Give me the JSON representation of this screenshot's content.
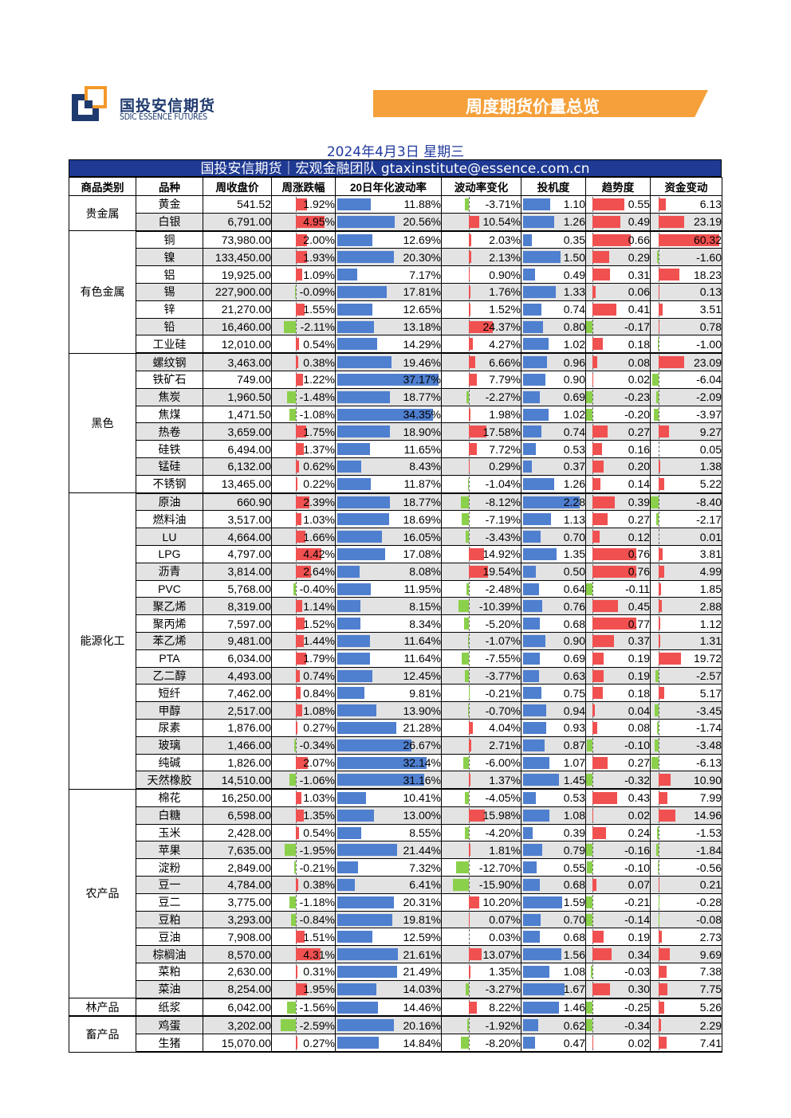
{
  "logo": {
    "name_cn": "国投安信期货",
    "name_en": "SDIC ESSENCE FUTURES"
  },
  "banner": {
    "title": "周度期货价量总览"
  },
  "date": "2024年4月3日 星期三",
  "team": "国投安信期货｜宏观金融团队 gtaxinstitute@essence.com.cn",
  "headers": [
    "商品类别",
    "品种",
    "周收盘价",
    "周涨跌幅",
    "20日年化波动率",
    "波动率变化",
    "投机度",
    "趋势度",
    "资金变动"
  ],
  "colors": {
    "pos": "#f05050",
    "neg": "#8bd04a",
    "vol": "#4f7fcf"
  },
  "groups": [
    {
      "name": "贵金属",
      "rows": [
        {
          "name": "黄金",
          "close": "541.52",
          "chg": "1.92%",
          "vol": "11.88%",
          "volchg": "-3.71%",
          "spec": "1.10",
          "trend": "0.55",
          "fund": "6.13"
        },
        {
          "name": "白银",
          "close": "6,791.00",
          "chg": "4.95%",
          "vol": "20.56%",
          "volchg": "10.54%",
          "spec": "1.26",
          "trend": "0.49",
          "fund": "23.19"
        }
      ]
    },
    {
      "name": "有色金属",
      "rows": [
        {
          "name": "铜",
          "close": "73,980.00",
          "chg": "2.00%",
          "vol": "12.69%",
          "volchg": "2.03%",
          "spec": "0.35",
          "trend": "0.66",
          "fund": "60.32"
        },
        {
          "name": "镍",
          "close": "133,450.00",
          "chg": "1.93%",
          "vol": "20.30%",
          "volchg": "2.13%",
          "spec": "1.50",
          "trend": "0.29",
          "fund": "-1.60"
        },
        {
          "name": "铝",
          "close": "19,925.00",
          "chg": "1.09%",
          "vol": "7.17%",
          "volchg": "0.90%",
          "spec": "0.49",
          "trend": "0.31",
          "fund": "18.23"
        },
        {
          "name": "锡",
          "close": "227,900.00",
          "chg": "-0.09%",
          "vol": "17.81%",
          "volchg": "1.76%",
          "spec": "1.33",
          "trend": "0.06",
          "fund": "0.13"
        },
        {
          "name": "锌",
          "close": "21,270.00",
          "chg": "1.55%",
          "vol": "12.65%",
          "volchg": "1.52%",
          "spec": "0.74",
          "trend": "0.41",
          "fund": "3.51"
        },
        {
          "name": "铅",
          "close": "16,460.00",
          "chg": "-2.11%",
          "vol": "13.18%",
          "volchg": "24.37%",
          "spec": "0.80",
          "trend": "-0.17",
          "fund": "0.78"
        },
        {
          "name": "工业硅",
          "close": "12,010.00",
          "chg": "0.54%",
          "vol": "14.29%",
          "volchg": "4.27%",
          "spec": "1.02",
          "trend": "0.18",
          "fund": "-1.00"
        }
      ]
    },
    {
      "name": "黑色",
      "rows": [
        {
          "name": "螺纹钢",
          "close": "3,463.00",
          "chg": "0.38%",
          "vol": "19.46%",
          "volchg": "6.66%",
          "spec": "0.96",
          "trend": "0.08",
          "fund": "23.09"
        },
        {
          "name": "铁矿石",
          "close": "749.00",
          "chg": "1.22%",
          "vol": "37.17%",
          "volchg": "7.79%",
          "spec": "0.90",
          "trend": "0.02",
          "fund": "-6.04"
        },
        {
          "name": "焦炭",
          "close": "1,960.50",
          "chg": "-1.48%",
          "vol": "18.77%",
          "volchg": "-2.27%",
          "spec": "0.69",
          "trend": "-0.23",
          "fund": "-2.09"
        },
        {
          "name": "焦煤",
          "close": "1,471.50",
          "chg": "-1.08%",
          "vol": "34.35%",
          "volchg": "1.98%",
          "spec": "1.02",
          "trend": "-0.20",
          "fund": "-3.97"
        },
        {
          "name": "热卷",
          "close": "3,659.00",
          "chg": "1.75%",
          "vol": "18.90%",
          "volchg": "17.58%",
          "spec": "0.74",
          "trend": "0.27",
          "fund": "9.27"
        },
        {
          "name": "硅铁",
          "close": "6,494.00",
          "chg": "1.37%",
          "vol": "11.65%",
          "volchg": "7.72%",
          "spec": "0.53",
          "trend": "0.16",
          "fund": "0.05"
        },
        {
          "name": "锰硅",
          "close": "6,132.00",
          "chg": "0.62%",
          "vol": "8.43%",
          "volchg": "0.29%",
          "spec": "0.37",
          "trend": "0.20",
          "fund": "1.38"
        },
        {
          "name": "不锈钢",
          "close": "13,465.00",
          "chg": "0.22%",
          "vol": "11.87%",
          "volchg": "-1.04%",
          "spec": "1.26",
          "trend": "0.14",
          "fund": "5.22"
        }
      ]
    },
    {
      "name": "能源化工",
      "rows": [
        {
          "name": "原油",
          "close": "660.90",
          "chg": "2.39%",
          "vol": "18.77%",
          "volchg": "-8.12%",
          "spec": "2.28",
          "trend": "0.39",
          "fund": "-8.40"
        },
        {
          "name": "燃料油",
          "close": "3,517.00",
          "chg": "1.03%",
          "vol": "18.69%",
          "volchg": "-7.19%",
          "spec": "1.13",
          "trend": "0.27",
          "fund": "-2.17"
        },
        {
          "name": "LU",
          "close": "4,664.00",
          "chg": "1.66%",
          "vol": "16.05%",
          "volchg": "-3.43%",
          "spec": "0.70",
          "trend": "0.12",
          "fund": "0.01"
        },
        {
          "name": "LPG",
          "close": "4,797.00",
          "chg": "4.42%",
          "vol": "17.08%",
          "volchg": "14.92%",
          "spec": "1.35",
          "trend": "0.76",
          "fund": "3.81"
        },
        {
          "name": "沥青",
          "close": "3,814.00",
          "chg": "2.64%",
          "vol": "8.08%",
          "volchg": "19.54%",
          "spec": "0.50",
          "trend": "0.76",
          "fund": "4.99"
        },
        {
          "name": "PVC",
          "close": "5,768.00",
          "chg": "-0.40%",
          "vol": "11.95%",
          "volchg": "-2.48%",
          "spec": "0.64",
          "trend": "-0.11",
          "fund": "1.85"
        },
        {
          "name": "聚乙烯",
          "close": "8,319.00",
          "chg": "1.14%",
          "vol": "8.15%",
          "volchg": "-10.39%",
          "spec": "0.76",
          "trend": "0.45",
          "fund": "2.88"
        },
        {
          "name": "聚丙烯",
          "close": "7,597.00",
          "chg": "1.52%",
          "vol": "8.34%",
          "volchg": "-5.20%",
          "spec": "0.68",
          "trend": "0.77",
          "fund": "1.12"
        },
        {
          "name": "苯乙烯",
          "close": "9,481.00",
          "chg": "1.44%",
          "vol": "11.64%",
          "volchg": "-1.07%",
          "spec": "0.90",
          "trend": "0.37",
          "fund": "1.31"
        },
        {
          "name": "PTA",
          "close": "6,034.00",
          "chg": "1.79%",
          "vol": "11.64%",
          "volchg": "-7.55%",
          "spec": "0.69",
          "trend": "0.19",
          "fund": "19.72"
        },
        {
          "name": "乙二醇",
          "close": "4,493.00",
          "chg": "0.74%",
          "vol": "12.45%",
          "volchg": "-3.77%",
          "spec": "0.63",
          "trend": "0.19",
          "fund": "-2.57"
        },
        {
          "name": "短纤",
          "close": "7,462.00",
          "chg": "0.84%",
          "vol": "9.81%",
          "volchg": "-0.21%",
          "spec": "0.75",
          "trend": "0.18",
          "fund": "5.17"
        },
        {
          "name": "甲醇",
          "close": "2,517.00",
          "chg": "1.08%",
          "vol": "13.90%",
          "volchg": "-0.70%",
          "spec": "0.94",
          "trend": "0.04",
          "fund": "-3.45"
        },
        {
          "name": "尿素",
          "close": "1,876.00",
          "chg": "0.27%",
          "vol": "21.28%",
          "volchg": "4.04%",
          "spec": "0.93",
          "trend": "0.08",
          "fund": "-1.74"
        },
        {
          "name": "玻璃",
          "close": "1,466.00",
          "chg": "-0.34%",
          "vol": "26.67%",
          "volchg": "2.71%",
          "spec": "0.87",
          "trend": "-0.10",
          "fund": "-3.48"
        },
        {
          "name": "纯碱",
          "close": "1,826.00",
          "chg": "2.07%",
          "vol": "32.14%",
          "volchg": "-6.00%",
          "spec": "1.07",
          "trend": "0.27",
          "fund": "-6.13"
        },
        {
          "name": "天然橡胶",
          "close": "14,510.00",
          "chg": "-1.06%",
          "vol": "31.16%",
          "volchg": "1.37%",
          "spec": "1.45",
          "trend": "-0.32",
          "fund": "10.90"
        }
      ]
    },
    {
      "name": "农产品",
      "rows": [
        {
          "name": "棉花",
          "close": "16,250.00",
          "chg": "1.03%",
          "vol": "10.41%",
          "volchg": "-4.05%",
          "spec": "0.53",
          "trend": "0.43",
          "fund": "7.99"
        },
        {
          "name": "白糖",
          "close": "6,598.00",
          "chg": "1.35%",
          "vol": "13.00%",
          "volchg": "15.98%",
          "spec": "1.08",
          "trend": "0.02",
          "fund": "14.96"
        },
        {
          "name": "玉米",
          "close": "2,428.00",
          "chg": "0.54%",
          "vol": "8.55%",
          "volchg": "-4.20%",
          "spec": "0.39",
          "trend": "0.24",
          "fund": "-1.53"
        },
        {
          "name": "苹果",
          "close": "7,635.00",
          "chg": "-1.95%",
          "vol": "21.44%",
          "volchg": "1.81%",
          "spec": "0.79",
          "trend": "-0.16",
          "fund": "-1.84"
        },
        {
          "name": "淀粉",
          "close": "2,849.00",
          "chg": "-0.21%",
          "vol": "7.32%",
          "volchg": "-12.70%",
          "spec": "0.55",
          "trend": "-0.10",
          "fund": "-0.56"
        },
        {
          "name": "豆一",
          "close": "4,784.00",
          "chg": "0.38%",
          "vol": "6.41%",
          "volchg": "-15.90%",
          "spec": "0.68",
          "trend": "0.07",
          "fund": "0.21"
        },
        {
          "name": "豆二",
          "close": "3,775.00",
          "chg": "-1.18%",
          "vol": "20.31%",
          "volchg": "10.20%",
          "spec": "1.59",
          "trend": "-0.21",
          "fund": "-0.28"
        },
        {
          "name": "豆粕",
          "close": "3,293.00",
          "chg": "-0.84%",
          "vol": "19.81%",
          "volchg": "0.07%",
          "spec": "0.70",
          "trend": "-0.14",
          "fund": "-0.08"
        },
        {
          "name": "豆油",
          "close": "7,908.00",
          "chg": "1.51%",
          "vol": "12.59%",
          "volchg": "0.03%",
          "spec": "0.68",
          "trend": "0.19",
          "fund": "2.73"
        },
        {
          "name": "棕榈油",
          "close": "8,570.00",
          "chg": "4.31%",
          "vol": "21.61%",
          "volchg": "13.07%",
          "spec": "1.56",
          "trend": "0.34",
          "fund": "9.69"
        },
        {
          "name": "菜粕",
          "close": "2,630.00",
          "chg": "0.31%",
          "vol": "21.49%",
          "volchg": "1.35%",
          "spec": "1.08",
          "trend": "-0.03",
          "fund": "7.38"
        },
        {
          "name": "菜油",
          "close": "8,254.00",
          "chg": "1.95%",
          "vol": "14.03%",
          "volchg": "-3.27%",
          "spec": "1.67",
          "trend": "0.30",
          "fund": "7.75"
        }
      ]
    },
    {
      "name": "林产品",
      "rows": [
        {
          "name": "纸浆",
          "close": "6,042.00",
          "chg": "-1.56%",
          "vol": "14.46%",
          "volchg": "8.22%",
          "spec": "1.46",
          "trend": "-0.25",
          "fund": "5.26"
        }
      ]
    },
    {
      "name": "畜产品",
      "rows": [
        {
          "name": "鸡蛋",
          "close": "3,202.00",
          "chg": "-2.59%",
          "vol": "20.16%",
          "volchg": "-1.92%",
          "spec": "0.62",
          "trend": "-0.34",
          "fund": "2.29"
        },
        {
          "name": "生猪",
          "close": "15,070.00",
          "chg": "0.27%",
          "vol": "14.84%",
          "volchg": "-8.20%",
          "spec": "0.47",
          "trend": "0.02",
          "fund": "7.41"
        }
      ]
    }
  ]
}
